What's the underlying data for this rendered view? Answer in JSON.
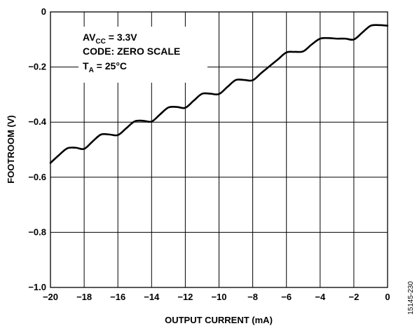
{
  "chart_data": {
    "type": "line",
    "title": "",
    "xlabel": "OUTPUT CURRENT (mA)",
    "ylabel": "FOOTROOM (V)",
    "xlim": [
      -20,
      0
    ],
    "ylim": [
      -1.0,
      0
    ],
    "x_ticks": [
      -20,
      -18,
      -16,
      -14,
      -12,
      -10,
      -8,
      -6,
      -4,
      -2,
      0
    ],
    "y_ticks": [
      0,
      -0.2,
      -0.4,
      -0.6,
      -0.8,
      -1.0
    ],
    "x_tick_labels": [
      "−20",
      "−18",
      "−16",
      "−14",
      "−12",
      "−10",
      "−8",
      "−6",
      "−4",
      "−2",
      "0"
    ],
    "y_tick_labels": [
      "0",
      "−0.2",
      "−0.4",
      "−0.6",
      "−0.8",
      "−1.0"
    ],
    "grid": true,
    "annotations": [
      {
        "text": "AV",
        "sub": "CC",
        "tail": " = 3.3V"
      },
      {
        "text": "CODE: ZERO SCALE",
        "sub": "",
        "tail": ""
      },
      {
        "text": "T",
        "sub": "A",
        "tail": " = 25°C"
      }
    ],
    "series": [
      {
        "x": [
          -20,
          -19.5,
          -19,
          -18.5,
          -18,
          -17.5,
          -17,
          -16.5,
          -16,
          -15.5,
          -15,
          -14.5,
          -14,
          -13.5,
          -13,
          -12.5,
          -12,
          -11.5,
          -11,
          -10.5,
          -10,
          -9.5,
          -9,
          -8.5,
          -8,
          -7.5,
          -7,
          -6.5,
          -6,
          -5.5,
          -5,
          -4.5,
          -4,
          -3.5,
          -3,
          -2.5,
          -2,
          -1.5,
          -1,
          -0.5,
          0
        ],
        "y": [
          -0.548,
          -0.52,
          -0.495,
          -0.493,
          -0.497,
          -0.47,
          -0.445,
          -0.445,
          -0.447,
          -0.422,
          -0.397,
          -0.395,
          -0.398,
          -0.372,
          -0.347,
          -0.345,
          -0.348,
          -0.322,
          -0.297,
          -0.297,
          -0.298,
          -0.272,
          -0.247,
          -0.247,
          -0.248,
          -0.222,
          -0.197,
          -0.172,
          -0.147,
          -0.145,
          -0.143,
          -0.118,
          -0.097,
          -0.095,
          -0.097,
          -0.097,
          -0.1,
          -0.075,
          -0.05,
          -0.048,
          -0.05
        ],
        "color": "#000000"
      }
    ]
  },
  "figure_id": "15145-230"
}
